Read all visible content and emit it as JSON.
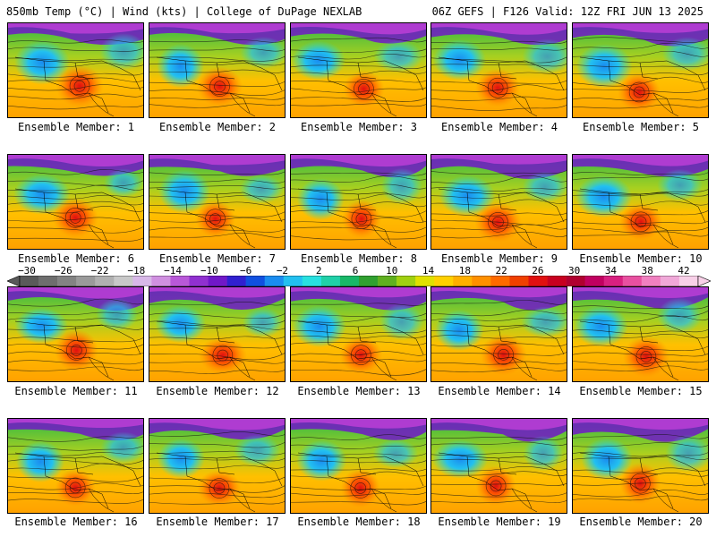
{
  "header": {
    "left": "850mb Temp (°C) | Wind (kts) | College of DuPage NEXLAB",
    "right": "06Z GEFS | F126 Valid: 12Z FRI JUN 13 2025"
  },
  "panels": [
    {
      "label": "Ensemble Member: 1"
    },
    {
      "label": "Ensemble Member: 2"
    },
    {
      "label": "Ensemble Member: 3"
    },
    {
      "label": "Ensemble Member: 4"
    },
    {
      "label": "Ensemble Member: 5"
    },
    {
      "label": "Ensemble Member: 6"
    },
    {
      "label": "Ensemble Member: 7"
    },
    {
      "label": "Ensemble Member: 8"
    },
    {
      "label": "Ensemble Member: 9"
    },
    {
      "label": "Ensemble Member: 10"
    },
    {
      "label": "Ensemble Member: 11"
    },
    {
      "label": "Ensemble Member: 12"
    },
    {
      "label": "Ensemble Member: 13"
    },
    {
      "label": "Ensemble Member: 14"
    },
    {
      "label": "Ensemble Member: 15"
    },
    {
      "label": "Ensemble Member: 16"
    },
    {
      "label": "Ensemble Member: 17"
    },
    {
      "label": "Ensemble Member: 18"
    },
    {
      "label": "Ensemble Member: 19"
    },
    {
      "label": "Ensemble Member: 20"
    }
  ],
  "colorbar": {
    "ticks": [
      "−30",
      "−26",
      "−22",
      "−18",
      "−14",
      "−10",
      "−6",
      "−2",
      "2",
      "6",
      "10",
      "14",
      "18",
      "22",
      "26",
      "30",
      "34",
      "38",
      "42"
    ],
    "colors": [
      "#5a5a5a",
      "#6e6e6e",
      "#838383",
      "#9a9a9a",
      "#b0b0b0",
      "#c8c8c8",
      "#d8b8e8",
      "#d090e0",
      "#b858d8",
      "#9030d0",
      "#7018c8",
      "#3020d0",
      "#1050e0",
      "#1a8cf0",
      "#22c0f0",
      "#28e0e0",
      "#20d0a8",
      "#18b868",
      "#30a030",
      "#60b020",
      "#a0d010",
      "#e0e000",
      "#ffd000",
      "#ffb000",
      "#ff9000",
      "#ff6a00",
      "#f04000",
      "#e01010",
      "#c80020",
      "#b00030",
      "#c00060",
      "#d82080",
      "#e850a0",
      "#f080c0",
      "#f0a8d8",
      "#f8d0e8"
    ]
  }
}
